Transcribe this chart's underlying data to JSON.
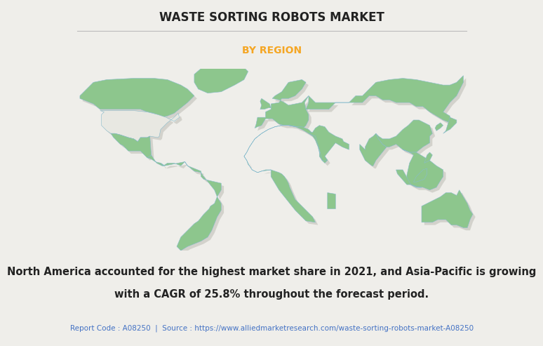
{
  "title": "WASTE SORTING ROBOTS MARKET",
  "subtitle": "BY REGION",
  "subtitle_color": "#F5A623",
  "title_color": "#222222",
  "background_color": "#EFEEEA",
  "map_land_color": "#8DC68D",
  "map_na_color": "#E8E8E2",
  "map_border_color": "#88BBCC",
  "map_shadow_color": "#B8B8B0",
  "body_text_line1": "North America accounted for the highest market share in 2021, and Asia-Pacific is growing",
  "body_text_line2": "with a CAGR of 25.8% throughout the forecast period.",
  "footer_text": "Report Code : A08250  |  Source : https://www.alliedmarketresearch.com/waste-sorting-robots-market-A08250",
  "footer_color": "#4472C4",
  "body_text_color": "#222222",
  "title_fontsize": 12,
  "subtitle_fontsize": 10,
  "body_fontsize": 10.5,
  "footer_fontsize": 7.5
}
